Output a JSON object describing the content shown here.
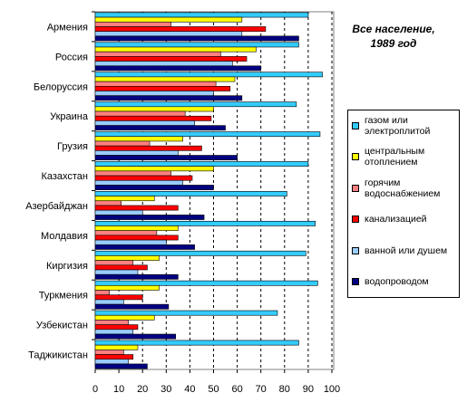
{
  "chart_data": {
    "type": "bar",
    "orientation": "horizontal",
    "title_lines": [
      "Все население,",
      "1989 год"
    ],
    "categories": [
      "Армения",
      "Россия",
      "Белоруссия",
      "Украина",
      "Грузия",
      "Казахстан",
      "Азербайджан",
      "Молдавия",
      "Киргизия",
      "Туркмения",
      "Узбекистан",
      "Таджикистан"
    ],
    "series": [
      {
        "name": "газом или электроплитой",
        "color": "#33ccff",
        "values": [
          90,
          86,
          96,
          85,
          95,
          90,
          81,
          93,
          89,
          94,
          77,
          86
        ]
      },
      {
        "name": "центральным отоплением",
        "color": "#ffff00",
        "values": [
          62,
          68,
          59,
          50,
          37,
          50,
          25,
          35,
          27,
          27,
          25,
          18
        ]
      },
      {
        "name": "горячим водоснабжением",
        "color": "#ff8080",
        "values": [
          32,
          53,
          51,
          38,
          23,
          32,
          11,
          26,
          16,
          6,
          14,
          12
        ]
      },
      {
        "name": "канализацией",
        "color": "#ff0000",
        "values": [
          72,
          64,
          57,
          49,
          45,
          41,
          35,
          35,
          22,
          20,
          18,
          16
        ]
      },
      {
        "name": "ванной или душем",
        "color": "#99ccff",
        "values": [
          62,
          58,
          50,
          42,
          35,
          37,
          20,
          30,
          18,
          12,
          16,
          14
        ]
      },
      {
        "name": "водопроводом",
        "color": "#000080",
        "values": [
          86,
          70,
          62,
          55,
          60,
          50,
          46,
          42,
          35,
          31,
          34,
          22
        ]
      }
    ],
    "xlim": [
      0,
      100
    ],
    "xticks": [
      0,
      10,
      20,
      30,
      40,
      50,
      60,
      70,
      80,
      90,
      100
    ],
    "grid": true
  }
}
